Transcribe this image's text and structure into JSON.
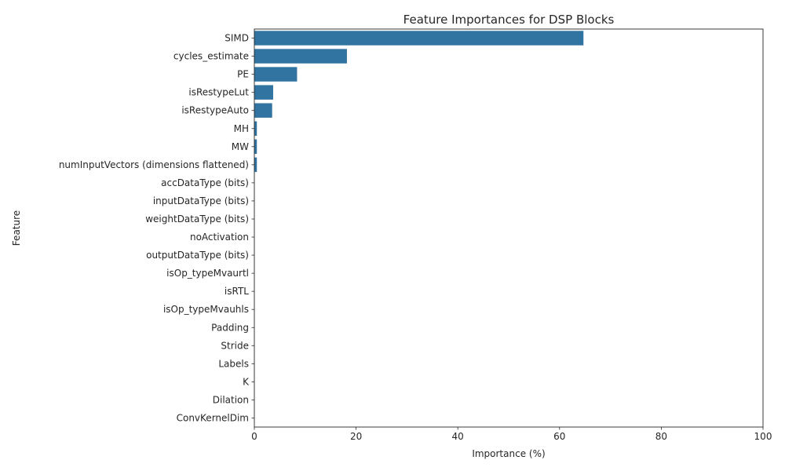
{
  "chart_data": {
    "type": "bar",
    "orientation": "horizontal",
    "title": "Feature Importances for DSP Blocks",
    "xlabel": "Importance (%)",
    "ylabel": "Feature",
    "xlim": [
      0,
      100
    ],
    "xticks": [
      0,
      20,
      40,
      60,
      80,
      100
    ],
    "grid": false,
    "bar_color": "#3274a1",
    "categories": [
      "SIMD",
      "cycles_estimate",
      "PE",
      "isRestypeLut",
      "isRestypeAuto",
      "MH",
      "MW",
      "numInputVectors (dimensions flattened)",
      "accDataType (bits)",
      "inputDataType (bits)",
      "weightDataType (bits)",
      "noActivation",
      "outputDataType (bits)",
      "isOp_typeMvaurtl",
      "isRTL",
      "isOp_typeMvauhls",
      "Padding",
      "Stride",
      "Labels",
      "K",
      "Dilation",
      "ConvKernelDim"
    ],
    "values": [
      64.7,
      18.2,
      8.4,
      3.7,
      3.5,
      0.5,
      0.5,
      0.5,
      0,
      0,
      0,
      0,
      0,
      0,
      0,
      0,
      0,
      0,
      0,
      0,
      0,
      0
    ]
  }
}
